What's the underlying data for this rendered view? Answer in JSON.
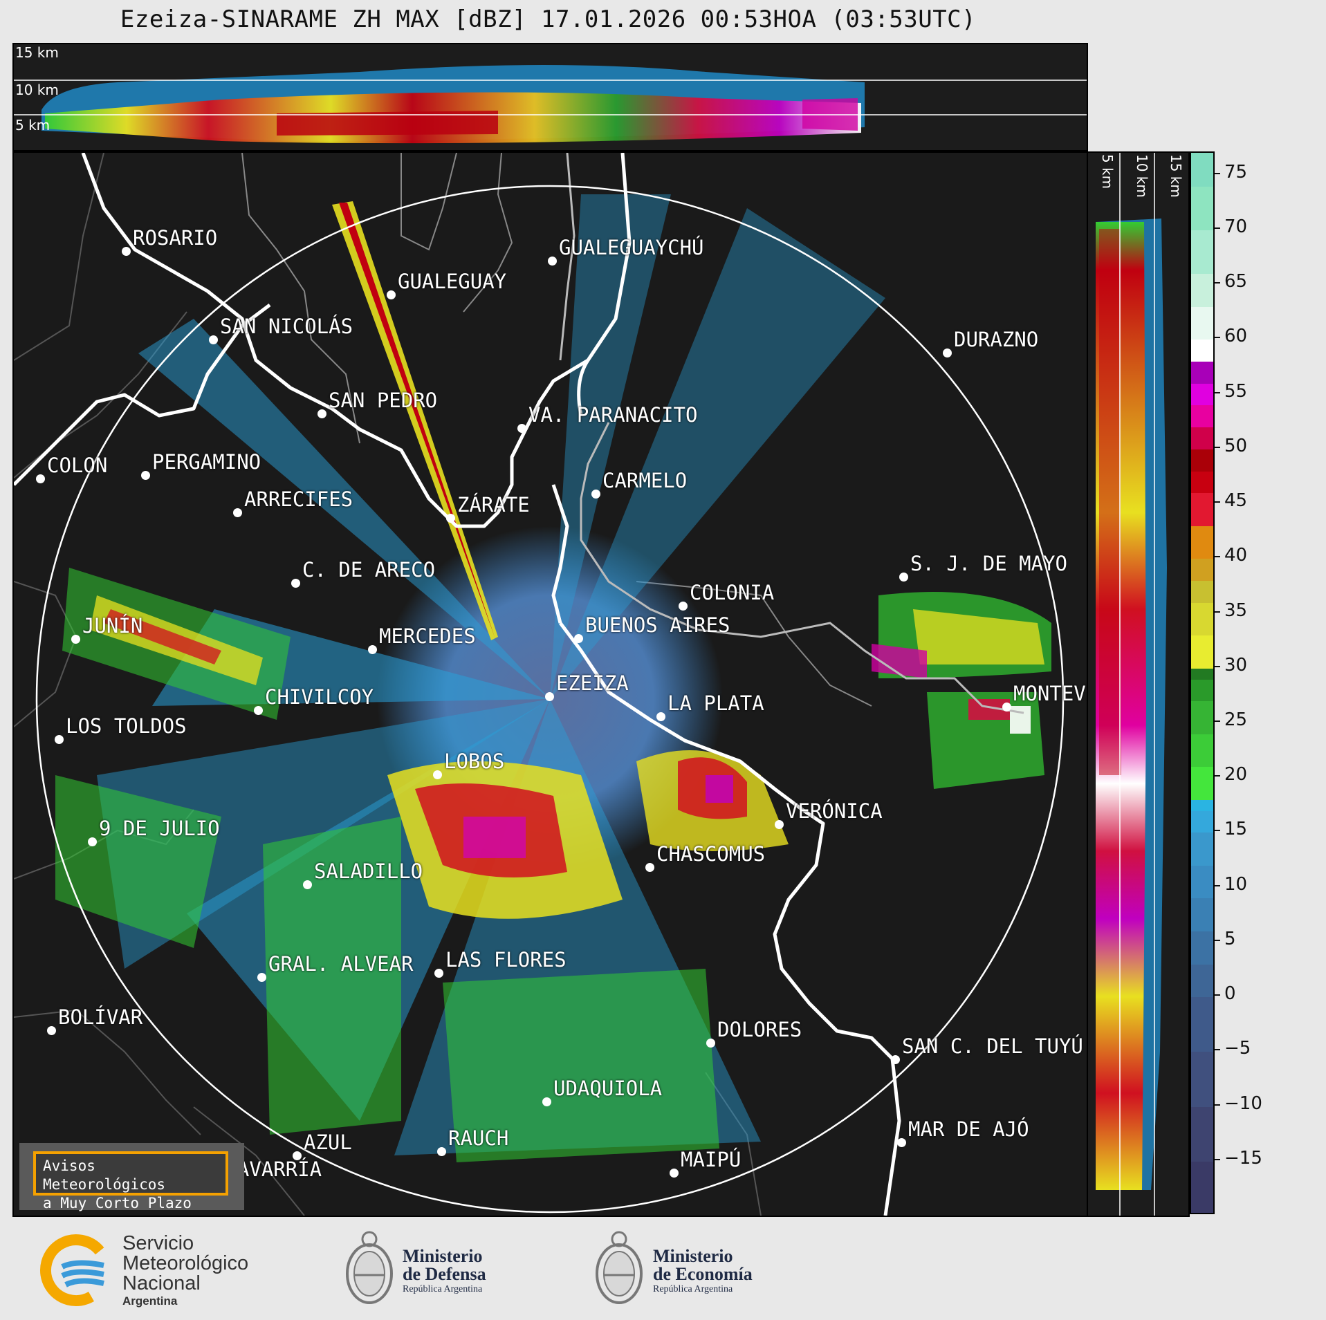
{
  "title": "Ezeiza-SINARAME ZH MAX [dBZ] 17.01.2026 00:53HOA (03:53UTC)",
  "top_panel": {
    "levels": [
      "15 km",
      "10 km",
      "5 km"
    ]
  },
  "right_panel": {
    "levels": [
      "5 km",
      "10 km",
      "15 km"
    ]
  },
  "colorbar": {
    "ticks": [
      "75",
      "70",
      "65",
      "60",
      "55",
      "50",
      "45",
      "40",
      "35",
      "30",
      "25",
      "20",
      "15",
      "10",
      "5",
      "0",
      "−5",
      "−10",
      "−15"
    ],
    "range": [
      -20,
      77
    ]
  },
  "cities": [
    {
      "name": "ROSARIO"
    },
    {
      "name": "GUALEGUAYCHÚ"
    },
    {
      "name": "GUALEGUAY"
    },
    {
      "name": "SAN NICOLÁS"
    },
    {
      "name": "DURAZNO"
    },
    {
      "name": "SAN PEDRO"
    },
    {
      "name": "VA. PARANACITO"
    },
    {
      "name": "COLON"
    },
    {
      "name": "PERGAMINO"
    },
    {
      "name": "CARMELO"
    },
    {
      "name": "ARRECIFES"
    },
    {
      "name": "ZÁRATE"
    },
    {
      "name": "S. J. DE MAYO"
    },
    {
      "name": "C. DE ARECO"
    },
    {
      "name": "COLONIA"
    },
    {
      "name": "JUNÍN"
    },
    {
      "name": "BUENOS AIRES"
    },
    {
      "name": "MERCEDES"
    },
    {
      "name": "EZEIZA"
    },
    {
      "name": "MONTEVIDEO"
    },
    {
      "name": "CHIVILCOY"
    },
    {
      "name": "LA PLATA"
    },
    {
      "name": "LOS TOLDOS"
    },
    {
      "name": "LOBOS"
    },
    {
      "name": "VERÓNICA"
    },
    {
      "name": "9 DE JULIO"
    },
    {
      "name": "CHASCOMUS"
    },
    {
      "name": "SALADILLO"
    },
    {
      "name": "GRAL. ALVEAR"
    },
    {
      "name": "LAS FLORES"
    },
    {
      "name": "BOLÍVAR"
    },
    {
      "name": "DOLORES"
    },
    {
      "name": "SAN C. DEL TUYÚ"
    },
    {
      "name": "UDAQUIOLA"
    },
    {
      "name": "MAR DE AJÓ"
    },
    {
      "name": "AZUL"
    },
    {
      "name": "RAUCH"
    },
    {
      "name": "OLAVARRÍA"
    },
    {
      "name": "MAIPÚ"
    }
  ],
  "avisos": {
    "line1": "Avisos Meteorológicos",
    "line2": "a Muy Corto Plazo"
  },
  "logos": {
    "smn": {
      "line1": "Servicio",
      "line2": "Meteorológico",
      "line3": "Nacional",
      "line4": "Argentina"
    },
    "defensa": {
      "line1": "Ministerio",
      "line2": "de Defensa",
      "line3": "República Argentina"
    },
    "economia": {
      "line1": "Ministerio",
      "line2": "de Economía",
      "line3": "República Argentina"
    }
  },
  "colors": {
    "background": "#1a1a1a",
    "accent_orange": "#f5a100",
    "smn_blue": "#3a9ad9",
    "smn_yellow": "#f5a800"
  }
}
